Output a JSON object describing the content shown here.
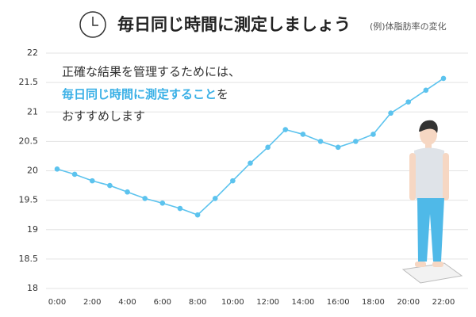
{
  "chart_data": {
    "type": "line",
    "title": "毎日同じ時間に測定しましょう",
    "subtitle": "(例)体脂肪率の変化",
    "annotation": {
      "line1": "正確な結果を管理するためには、",
      "highlight": "毎日同じ時間に測定すること",
      "line2_rest": "を",
      "line3": "おすすめします"
    },
    "x": [
      0,
      1,
      2,
      3,
      4,
      5,
      6,
      7,
      8,
      9,
      10,
      11,
      12,
      13,
      14,
      15,
      16,
      17,
      18,
      19,
      20,
      21,
      22
    ],
    "values": [
      20.03,
      19.94,
      19.83,
      19.75,
      19.64,
      19.53,
      19.45,
      19.36,
      19.25,
      19.53,
      19.83,
      20.13,
      20.4,
      20.7,
      20.62,
      20.5,
      20.4,
      20.5,
      20.62,
      20.98,
      21.17,
      21.37,
      21.57
    ],
    "color": "#5cc3ee",
    "xlim": [
      0,
      22
    ],
    "xticks": [
      {
        "value": 0,
        "label": "0:00"
      },
      {
        "value": 2,
        "label": "2:00"
      },
      {
        "value": 4,
        "label": "4:00"
      },
      {
        "value": 6,
        "label": "6:00"
      },
      {
        "value": 8,
        "label": "8:00"
      },
      {
        "value": 10,
        "label": "10:00"
      },
      {
        "value": 12,
        "label": "12:00"
      },
      {
        "value": 14,
        "label": "14:00"
      },
      {
        "value": 16,
        "label": "16:00"
      },
      {
        "value": 18,
        "label": "18:00"
      },
      {
        "value": 20,
        "label": "20:00"
      },
      {
        "value": 22,
        "label": "22:00"
      }
    ],
    "ylim": [
      18,
      22
    ],
    "yticks": [
      18,
      18.5,
      19,
      19.5,
      20,
      20.5,
      21,
      21.5,
      22
    ],
    "grid": true
  }
}
